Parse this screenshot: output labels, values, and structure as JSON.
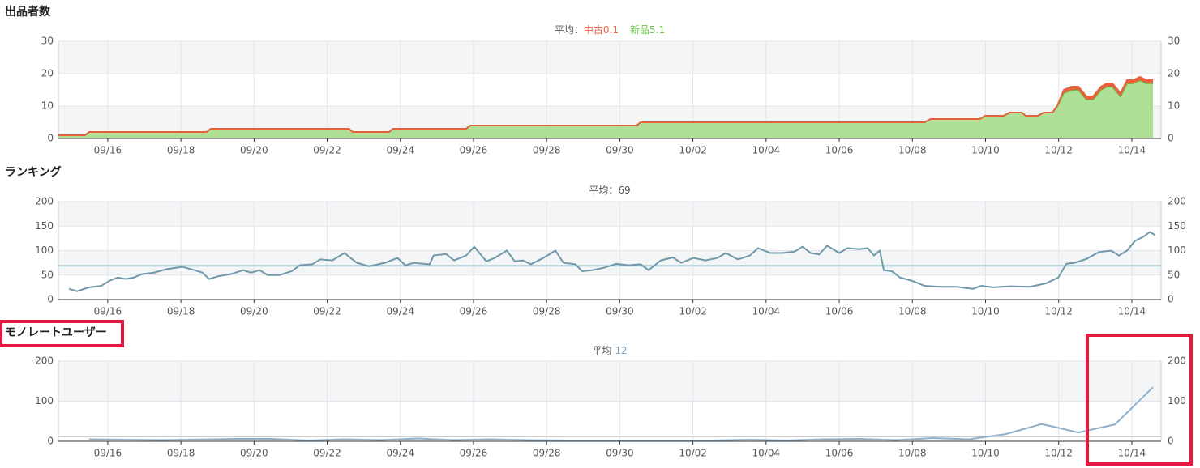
{
  "chart_data": [
    {
      "type": "area",
      "title": "出品者数",
      "subtitle": "平均：",
      "xlim": [
        257.65,
        287.8
      ],
      "ylim": [
        0,
        30
      ],
      "yticks": [
        0,
        10,
        20,
        30
      ],
      "grid": true,
      "xticks": [
        {
          "value": 259,
          "label": "09/16"
        },
        {
          "value": 261,
          "label": "09/18"
        },
        {
          "value": 263,
          "label": "09/20"
        },
        {
          "value": 265,
          "label": "09/22"
        },
        {
          "value": 267,
          "label": "09/24"
        },
        {
          "value": 269,
          "label": "09/26"
        },
        {
          "value": 271,
          "label": "09/28"
        },
        {
          "value": 273,
          "label": "09/30"
        },
        {
          "value": 275,
          "label": "10/02"
        },
        {
          "value": 277,
          "label": "10/04"
        },
        {
          "value": 279,
          "label": "10/06"
        },
        {
          "value": 281,
          "label": "10/08"
        },
        {
          "value": 283,
          "label": "10/10"
        },
        {
          "value": 285,
          "label": "10/12"
        },
        {
          "value": 287,
          "label": "10/14"
        }
      ],
      "x": [
        257.65,
        258.38,
        258.49,
        261.7,
        261.82,
        265.59,
        265.7,
        266.69,
        266.8,
        268.8,
        268.91,
        273.46,
        273.57,
        281.33,
        281.5,
        282.84,
        282.99,
        283.5,
        283.66,
        283.99,
        284.1,
        284.43,
        284.59,
        284.83,
        284.96,
        285.14,
        285.36,
        285.54,
        285.76,
        285.94,
        286.16,
        286.32,
        286.47,
        286.69,
        286.87,
        287.04,
        287.22,
        287.4,
        287.58
      ],
      "series": [
        {
          "name": "中古",
          "average": 0.1,
          "color": "#e8603c",
          "values": [
            0,
            0,
            0,
            0,
            0,
            0,
            0,
            0,
            0,
            0,
            0,
            0,
            0,
            0,
            0,
            0,
            0,
            0,
            0,
            0,
            0,
            0,
            0,
            0,
            0,
            1,
            1,
            1,
            1,
            1,
            1,
            1,
            1,
            1,
            1,
            1,
            1,
            1,
            1
          ]
        },
        {
          "name": "新品",
          "average": 5.1,
          "color": "#6cc04a",
          "fill": "#addf95",
          "values": [
            1,
            1,
            2,
            2,
            3,
            3,
            2,
            2,
            3,
            3,
            4,
            4,
            5,
            5,
            6,
            6,
            7,
            7,
            8,
            8,
            7,
            7,
            8,
            8,
            10,
            14,
            15,
            15,
            12,
            12,
            15,
            16,
            16,
            13,
            17,
            17,
            18,
            17,
            17
          ]
        }
      ]
    },
    {
      "type": "line",
      "title": "ランキング",
      "subtitle": "平均：",
      "average": 69,
      "average_color": "#a9cbd6",
      "xlim": [
        257.65,
        287.8
      ],
      "ylim": [
        0,
        200
      ],
      "yticks": [
        0,
        50,
        100,
        150,
        200
      ],
      "grid": true,
      "xticks": [
        {
          "value": 259,
          "label": "09/16"
        },
        {
          "value": 261,
          "label": "09/18"
        },
        {
          "value": 263,
          "label": "09/20"
        },
        {
          "value": 265,
          "label": "09/22"
        },
        {
          "value": 267,
          "label": "09/24"
        },
        {
          "value": 269,
          "label": "09/26"
        },
        {
          "value": 271,
          "label": "09/28"
        },
        {
          "value": 273,
          "label": "09/30"
        },
        {
          "value": 275,
          "label": "10/02"
        },
        {
          "value": 277,
          "label": "10/04"
        },
        {
          "value": 279,
          "label": "10/06"
        },
        {
          "value": 281,
          "label": "10/08"
        },
        {
          "value": 283,
          "label": "10/10"
        },
        {
          "value": 285,
          "label": "10/12"
        },
        {
          "value": 287,
          "label": "10/14"
        }
      ],
      "x": [
        257.94,
        258.16,
        258.49,
        258.82,
        259.04,
        259.27,
        259.49,
        259.71,
        259.93,
        260.26,
        260.6,
        261.04,
        261.37,
        261.59,
        261.77,
        262.04,
        262.37,
        262.7,
        262.92,
        263.15,
        263.37,
        263.7,
        264.03,
        264.25,
        264.59,
        264.81,
        265.14,
        265.47,
        265.81,
        266.14,
        266.58,
        266.92,
        267.14,
        267.36,
        267.8,
        267.91,
        268.25,
        268.47,
        268.8,
        269.02,
        269.35,
        269.58,
        269.91,
        270.13,
        270.35,
        270.57,
        270.91,
        271.24,
        271.46,
        271.79,
        271.97,
        272.24,
        272.57,
        272.9,
        273.24,
        273.57,
        273.79,
        274.12,
        274.45,
        274.68,
        275.01,
        275.34,
        275.67,
        275.9,
        276.23,
        276.56,
        276.78,
        277.12,
        277.45,
        277.78,
        278,
        278.22,
        278.45,
        278.67,
        279,
        279.22,
        279.55,
        279.78,
        279.95,
        280.11,
        280.22,
        280.44,
        280.66,
        281,
        281.33,
        281.77,
        282.21,
        282.66,
        282.88,
        283.21,
        283.66,
        284.21,
        284.65,
        284.99,
        285.21,
        285.43,
        285.76,
        286.1,
        286.43,
        286.65,
        286.87,
        287.09,
        287.31,
        287.49,
        287.63
      ],
      "series": [
        {
          "color": "#6f98a8",
          "values": [
            22,
            17,
            25,
            28,
            38,
            45,
            42,
            45,
            52,
            55,
            62,
            67,
            60,
            55,
            42,
            48,
            52,
            60,
            55,
            60,
            50,
            50,
            58,
            70,
            72,
            82,
            80,
            95,
            75,
            68,
            75,
            85,
            70,
            75,
            72,
            90,
            93,
            80,
            90,
            108,
            78,
            85,
            100,
            78,
            80,
            72,
            85,
            100,
            75,
            72,
            58,
            60,
            65,
            73,
            70,
            72,
            60,
            80,
            86,
            75,
            85,
            80,
            85,
            95,
            82,
            90,
            105,
            95,
            95,
            98,
            108,
            95,
            92,
            110,
            95,
            105,
            103,
            105,
            90,
            100,
            60,
            58,
            45,
            38,
            28,
            26,
            26,
            22,
            28,
            25,
            27,
            26,
            33,
            45,
            73,
            75,
            83,
            97,
            100,
            90,
            100,
            120,
            128,
            138,
            132
          ]
        }
      ]
    },
    {
      "type": "line",
      "title": "モノレートユーザー",
      "subtitle": "平均",
      "average": 12,
      "average_color": "#cccccc",
      "average_text_color": "#7fa3c4",
      "xlim": [
        257.65,
        287.8
      ],
      "ylim": [
        0,
        200
      ],
      "yticks": [
        0,
        100,
        200
      ],
      "grid": true,
      "xticks": [
        {
          "value": 259,
          "label": "09/16"
        },
        {
          "value": 261,
          "label": "09/18"
        },
        {
          "value": 263,
          "label": "09/20"
        },
        {
          "value": 265,
          "label": "09/22"
        },
        {
          "value": 267,
          "label": "09/24"
        },
        {
          "value": 269,
          "label": "09/26"
        },
        {
          "value": 271,
          "label": "09/28"
        },
        {
          "value": 273,
          "label": "09/30"
        },
        {
          "value": 275,
          "label": "10/02"
        },
        {
          "value": 277,
          "label": "10/04"
        },
        {
          "value": 279,
          "label": "10/06"
        },
        {
          "value": 281,
          "label": "10/08"
        },
        {
          "value": 283,
          "label": "10/10"
        },
        {
          "value": 285,
          "label": "10/12"
        },
        {
          "value": 287,
          "label": "10/14"
        }
      ],
      "x": [
        258.49,
        260.49,
        262.48,
        263.48,
        264.48,
        265.47,
        266.47,
        267.47,
        268.47,
        269.47,
        270.46,
        271.57,
        272.57,
        273.57,
        274.57,
        275.56,
        276.56,
        277.56,
        278.56,
        279.55,
        280.55,
        281.55,
        282.55,
        283.55,
        284.54,
        285.54,
        286.54,
        287.58
      ],
      "series": [
        {
          "color": "#8fb0cc",
          "values": [
            5,
            3,
            6,
            6,
            2,
            5,
            3,
            7,
            3,
            5,
            3,
            2,
            2,
            2,
            2,
            2,
            4,
            2,
            5,
            6,
            3,
            8,
            5,
            18,
            43,
            22,
            42,
            135
          ]
        }
      ]
    }
  ]
}
